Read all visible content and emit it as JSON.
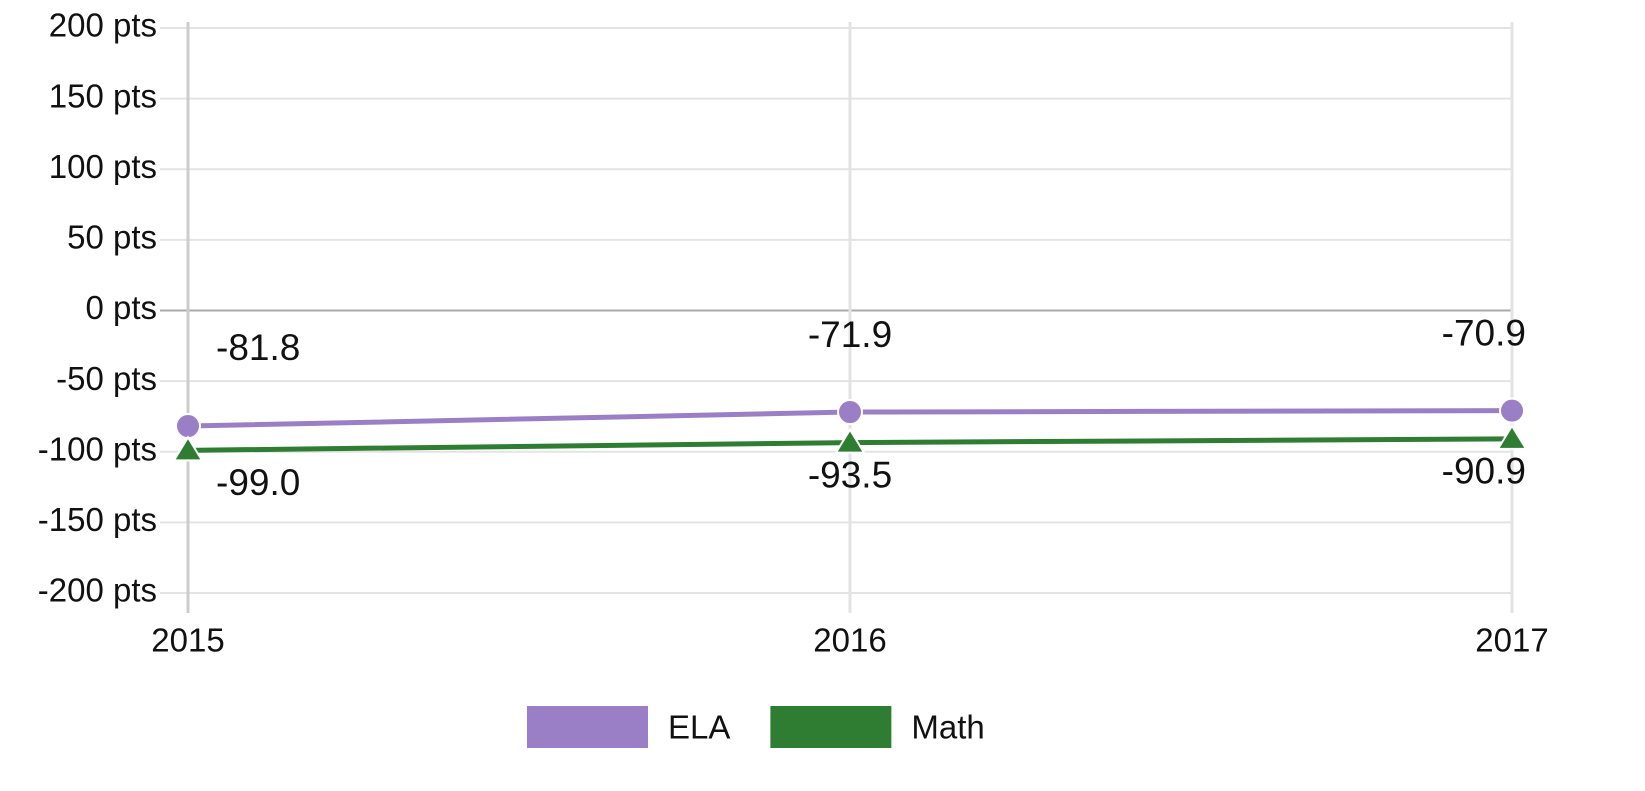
{
  "chart_data": {
    "type": "line",
    "categories": [
      "2015",
      "2016",
      "2017"
    ],
    "series": [
      {
        "name": "ELA",
        "color": "#9b7fc6",
        "marker": "circle",
        "values": [
          -81.8,
          -71.9,
          -70.9
        ],
        "value_labels": [
          "-81.8",
          "-71.9",
          "-70.9"
        ]
      },
      {
        "name": "Math",
        "color": "#2e7d32",
        "marker": "triangle",
        "values": [
          -99.0,
          -93.5,
          -90.9
        ],
        "value_labels": [
          "-99.0",
          "-93.5",
          "-90.9"
        ]
      }
    ],
    "ylim": [
      -200,
      200
    ],
    "yticks": [
      {
        "value": 200,
        "label": "200 pts"
      },
      {
        "value": 150,
        "label": "150 pts"
      },
      {
        "value": 100,
        "label": "100 pts"
      },
      {
        "value": 50,
        "label": "50 pts"
      },
      {
        "value": 0,
        "label": "0 pts"
      },
      {
        "value": -50,
        "label": "-50 pts"
      },
      {
        "value": -100,
        "label": "-100 pts"
      },
      {
        "value": -150,
        "label": "-150 pts"
      },
      {
        "value": -200,
        "label": "-200 pts"
      }
    ],
    "grid": true,
    "legend": "bottom"
  }
}
